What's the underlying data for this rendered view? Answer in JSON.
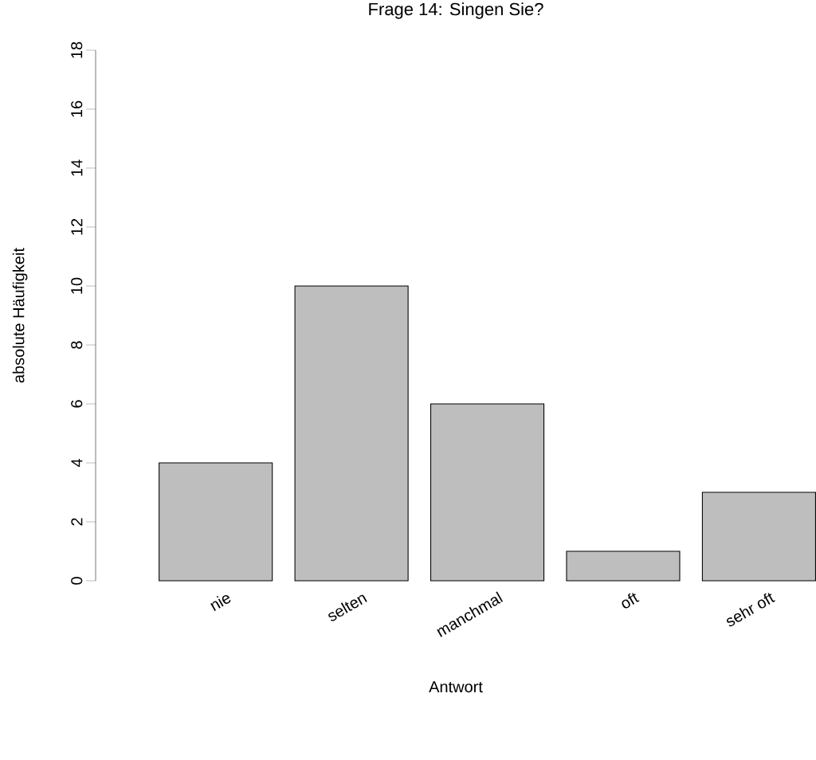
{
  "chart_data": {
    "type": "bar",
    "title": "Frage 14: Singen Sie?",
    "xlabel": "Antwort",
    "ylabel": "absolute Häufigkeit",
    "categories": [
      "nie",
      "selten",
      "manchmal",
      "oft",
      "sehr oft"
    ],
    "values": [
      4,
      10,
      6,
      1,
      3
    ],
    "color": "#bebebe",
    "ylim": [
      0,
      18
    ],
    "yticks": [
      0,
      2,
      4,
      6,
      8,
      10,
      12,
      14,
      16,
      18
    ]
  }
}
